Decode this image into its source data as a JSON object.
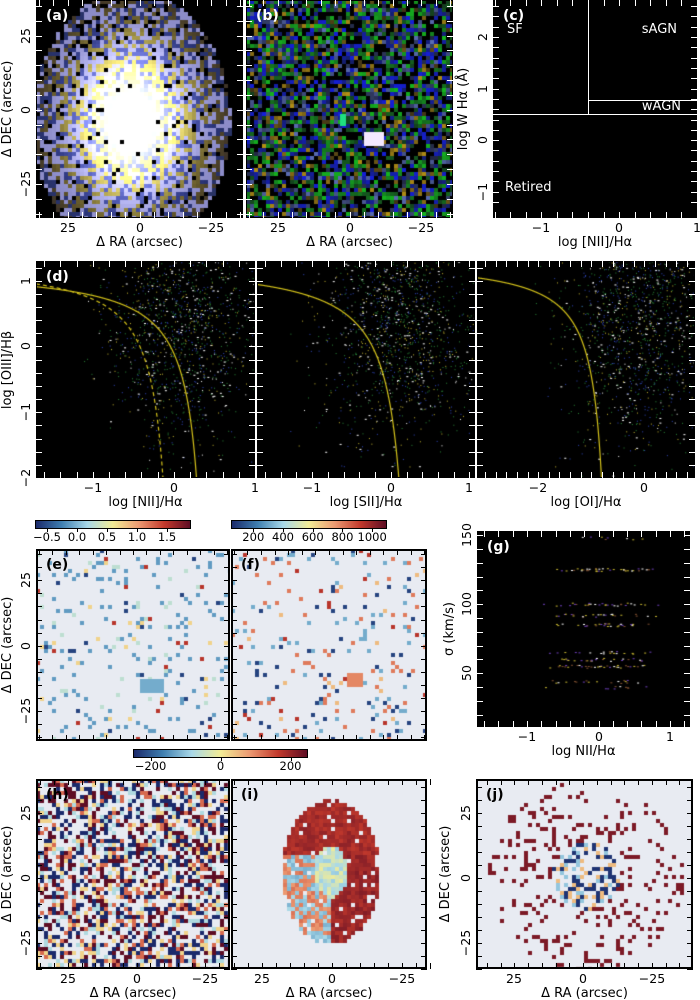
{
  "colors": {
    "panel_bg_dark": "#000000",
    "panel_bg_light": "#e8ebf2",
    "bpt_curve": "#d4c21a",
    "cmap": [
      "#1b2a6b",
      "#3f7fb0",
      "#a8d8e8",
      "#f2ec96",
      "#ec9a72",
      "#c2392c",
      "#5e0d24"
    ]
  },
  "panels": {
    "a": {
      "label": "(a)",
      "xlabel": "Δ RA (arcsec)",
      "ylabel": "Δ DEC (arcsec)",
      "xticks": [
        "25",
        "0",
        "−25"
      ],
      "yticks": [
        "25",
        "0",
        "−25"
      ],
      "xlim": [
        36,
        -36
      ],
      "ylim": [
        -36.5,
        37
      ]
    },
    "b": {
      "label": "(b)",
      "xlabel": "Δ RA (arcsec)",
      "xticks": [
        "25",
        "0",
        "−25"
      ],
      "xlim": [
        36,
        -36
      ],
      "ylim": [
        -36.5,
        37
      ]
    },
    "c": {
      "label": "(c)",
      "xlabel": "log [NII]/Hα",
      "ylabel": "log W Hα (Å)",
      "xticks": [
        "−1",
        "0",
        "1"
      ],
      "yticks": [
        "2",
        "1",
        "0",
        "−1"
      ],
      "xlim": [
        -1.62,
        1
      ],
      "ylim": [
        -1.51,
        2.72
      ],
      "regions": {
        "sf": "SF",
        "sagn": "sAGN",
        "wagn": "wAGN",
        "retired": "Retired"
      },
      "lines": {
        "vertical_x": -0.4,
        "horizontal_y": 0.5,
        "wagn_y": 0.78
      }
    },
    "d1": {
      "label": "(d)",
      "xlabel": "log [NII]/Hα",
      "ylabel": "log [OIII]/Hβ",
      "xticks": [
        "−1",
        "0",
        "1"
      ],
      "yticks": [
        "1",
        "0",
        "−1",
        "−2"
      ],
      "xlim": [
        -1.7,
        1.0
      ],
      "ylim": [
        -2,
        1.3
      ]
    },
    "d2": {
      "xlabel": "log [SII]/Hα",
      "xticks": [
        "−1",
        "0",
        "1"
      ],
      "xlim": [
        -1.7,
        1.07
      ],
      "ylim": [
        -2,
        1.3
      ]
    },
    "d3": {
      "xlabel": "log [OI]/Hα",
      "xticks": [
        "−2",
        "0"
      ],
      "xlim": [
        -3.15,
        0.95
      ],
      "ylim": [
        -2,
        1.3
      ]
    },
    "e": {
      "label": "(e)",
      "ylabel": "Δ DEC (arcsec)",
      "yticks": [
        "25",
        "0",
        "−25"
      ],
      "colorbar_ticks": [
        "−0.5",
        "0.0",
        "0.5",
        "1.0",
        "1.5"
      ],
      "colorbar_range": [
        -0.7,
        1.9
      ]
    },
    "f": {
      "label": "(f)",
      "colorbar_ticks": [
        "200",
        "400",
        "600",
        "800",
        "1000"
      ],
      "colorbar_range": [
        50,
        1100
      ]
    },
    "g": {
      "label": "(g)",
      "xlabel": "log NII/Hα",
      "ylabel": "σ (km/s)",
      "xticks": [
        "−1",
        "0",
        "1"
      ],
      "yticks": [
        "150",
        "100",
        "50"
      ],
      "xlim": [
        -1.7,
        1.28
      ],
      "ylim": [
        11,
        153
      ]
    },
    "h": {
      "label": "(h)",
      "xlabel": "Δ RA (arcsec)",
      "ylabel": "Δ DEC (arcsec)",
      "xticks": [
        "25",
        "0",
        "−25"
      ],
      "yticks": [
        "25",
        "0",
        "−25"
      ],
      "colorbar_ticks": [
        "−200",
        "0",
        "200"
      ],
      "colorbar_range": [
        -250,
        250
      ]
    },
    "i": {
      "label": "(i)",
      "xlabel": "Δ RA (arcsec)",
      "xticks": [
        "25",
        "0",
        "−25"
      ]
    },
    "j": {
      "label": "(j)",
      "xlabel": "Δ RA (arcsec)",
      "ylabel": "Δ DEC (arcsec)",
      "xticks": [
        "25",
        "0",
        "−25"
      ],
      "yticks": [
        "25",
        "0",
        "−25"
      ]
    }
  },
  "chart_data": [
    {
      "panel": "a",
      "type": "heatmap",
      "title": "",
      "xlabel": "Δ RA (arcsec)",
      "ylabel": "Δ DEC (arcsec)"
    },
    {
      "panel": "b",
      "type": "heatmap",
      "xlabel": "Δ RA (arcsec)"
    },
    {
      "panel": "c",
      "type": "scatter",
      "xlabel": "log [NII]/Hα",
      "ylabel": "log W Hα (Å)",
      "xlim": [
        -1.62,
        1
      ],
      "ylim": [
        -1.51,
        2.72
      ],
      "annotations": [
        "SF",
        "sAGN",
        "wAGN",
        "Retired"
      ]
    },
    {
      "panel": "d",
      "type": "scatter",
      "ylabel": "log [OIII]/Hβ",
      "xlabels": [
        "log [NII]/Hα",
        "log [SII]/Hα",
        "log [OI]/Hα"
      ],
      "ylim": [
        -2,
        1.3
      ]
    },
    {
      "panel": "e",
      "type": "heatmap",
      "colorbar_range": [
        -0.7,
        1.9
      ]
    },
    {
      "panel": "f",
      "type": "heatmap",
      "colorbar_range": [
        50,
        1100
      ]
    },
    {
      "panel": "g",
      "type": "scatter",
      "xlabel": "log NII/Hα",
      "ylabel": "σ (km/s)",
      "xlim": [
        -1.7,
        1.28
      ],
      "ylim": [
        11,
        153
      ]
    },
    {
      "panel": "h",
      "type": "heatmap",
      "colorbar_range": [
        -250,
        250
      ]
    },
    {
      "panel": "i",
      "type": "heatmap"
    },
    {
      "panel": "j",
      "type": "heatmap"
    }
  ]
}
